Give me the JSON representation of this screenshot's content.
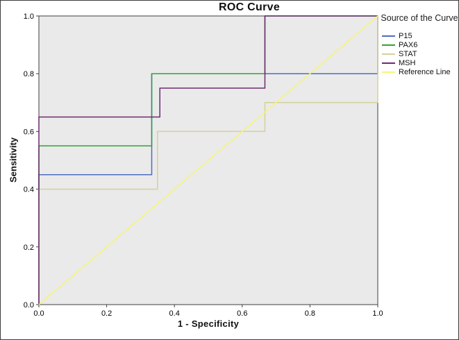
{
  "chart_data": {
    "type": "line",
    "title": "ROC Curve",
    "xlabel": "1 - Specificity",
    "ylabel": "Sensitivity",
    "xlim": [
      0,
      1
    ],
    "ylim": [
      0,
      1
    ],
    "xticks": [
      0.0,
      0.2,
      0.4,
      0.6,
      0.8,
      1.0
    ],
    "xtick_labels": [
      "0.0",
      "0.2",
      "0.4",
      "0.6",
      "0.8",
      "1.0"
    ],
    "yticks": [
      0.0,
      0.2,
      0.4,
      0.6,
      0.8,
      1.0
    ],
    "ytick_labels": [
      "0.0",
      "0.2",
      "0.4",
      "0.6",
      "0.8",
      "1.0"
    ],
    "grid": false,
    "plot_bg": "#eaeaea",
    "frame_color": "#3f3f3f",
    "legend_title": "Source of the Curve",
    "legend_position": "right",
    "series": [
      {
        "name": "P15",
        "color": "#4f6cbe",
        "points": [
          [
            0,
            0
          ],
          [
            0,
            0.45
          ],
          [
            0.333,
            0.45
          ],
          [
            0.333,
            0.8
          ],
          [
            1,
            0.8
          ],
          [
            1,
            1
          ]
        ]
      },
      {
        "name": "PAX6",
        "color": "#33a133",
        "points": [
          [
            0,
            0
          ],
          [
            0,
            0.55
          ],
          [
            0.333,
            0.55
          ],
          [
            0.333,
            0.8
          ],
          [
            0.667,
            0.8
          ],
          [
            0.667,
            1
          ],
          [
            1,
            1
          ]
        ]
      },
      {
        "name": "STAT",
        "color": "#d6d09a",
        "points": [
          [
            0,
            0
          ],
          [
            0,
            0.4
          ],
          [
            0.35,
            0.4
          ],
          [
            0.35,
            0.6
          ],
          [
            0.667,
            0.6
          ],
          [
            0.667,
            0.7
          ],
          [
            1,
            0.7
          ],
          [
            1,
            1
          ]
        ]
      },
      {
        "name": "MSH",
        "color": "#6e2a70",
        "points": [
          [
            0,
            0
          ],
          [
            0,
            0.65
          ],
          [
            0.357,
            0.65
          ],
          [
            0.357,
            0.75
          ],
          [
            0.667,
            0.75
          ],
          [
            0.667,
            1
          ],
          [
            1,
            1
          ]
        ]
      },
      {
        "name": "Reference Line",
        "color": "#f5f578",
        "points": [
          [
            0,
            0
          ],
          [
            1,
            1
          ]
        ]
      }
    ]
  }
}
